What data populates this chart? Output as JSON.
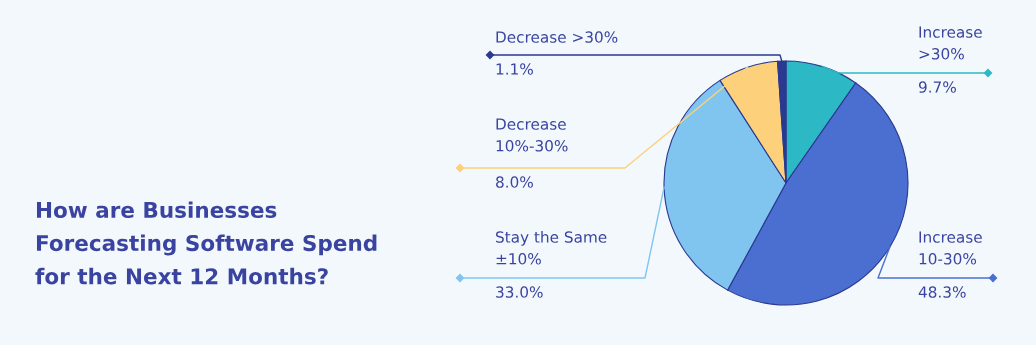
{
  "chart_data": {
    "type": "pie",
    "title": "How are Businesses\nForecasting Software Spend\nfor the Next 12 Months?",
    "categories": [
      "Increase\n>30%",
      "Increase\n10-30%",
      "Stay the Same\n±10%",
      "Decrease\n10%-30%",
      "Decrease >30%"
    ],
    "values": [
      9.7,
      48.3,
      33.0,
      8.0,
      1.1
    ],
    "colors": [
      "#2cb9c5",
      "#4a6fd1",
      "#80c5f0",
      "#fdd07b",
      "#2b3990"
    ],
    "value_labels": [
      "9.7%",
      "48.3%",
      "33.0%",
      "8.0%",
      "1.1%"
    ],
    "legend": false
  }
}
